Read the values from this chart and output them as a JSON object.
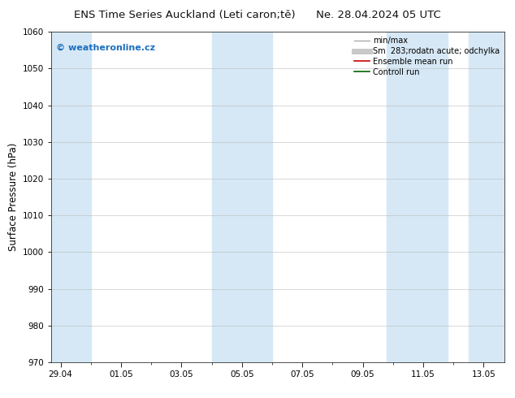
{
  "title_left": "ENS Time Series Auckland (Leti caron;tě)",
  "title_right": "Ne. 28.04.2024 05 UTC",
  "ylabel": "Surface Pressure (hPa)",
  "ylim": [
    970,
    1060
  ],
  "yticks": [
    970,
    980,
    990,
    1000,
    1010,
    1020,
    1030,
    1040,
    1050,
    1060
  ],
  "x_tick_labels": [
    "29.04",
    "01.05",
    "03.05",
    "05.05",
    "07.05",
    "09.05",
    "11.05",
    "13.05"
  ],
  "x_tick_positions": [
    0,
    2,
    4,
    6,
    8,
    10,
    12,
    14
  ],
  "xlim": [
    -0.3,
    14.7
  ],
  "shaded_bands": [
    {
      "x_start": -0.3,
      "x_end": 1.0
    },
    {
      "x_start": 5.0,
      "x_end": 7.0
    },
    {
      "x_start": 10.8,
      "x_end": 12.8
    },
    {
      "x_start": 13.5,
      "x_end": 14.7
    }
  ],
  "shaded_color": "#d6e8f5",
  "background_color": "#ffffff",
  "watermark_text": "© weatheronline.cz",
  "watermark_color": "#1a6fbf",
  "legend_items": [
    {
      "label": "min/max",
      "color": "#aaaaaa",
      "lw": 1.0,
      "style": "solid"
    },
    {
      "label": "Sm  283;rodatn acute; odchylka",
      "color": "#c8c8c8",
      "lw": 5,
      "style": "solid"
    },
    {
      "label": "Ensemble mean run",
      "color": "#cc0000",
      "lw": 1.2,
      "style": "solid"
    },
    {
      "label": "Controll run",
      "color": "#006600",
      "lw": 1.2,
      "style": "solid"
    }
  ],
  "title_fontsize": 9.5,
  "tick_fontsize": 7.5,
  "ylabel_fontsize": 8.5,
  "legend_fontsize": 7.0
}
